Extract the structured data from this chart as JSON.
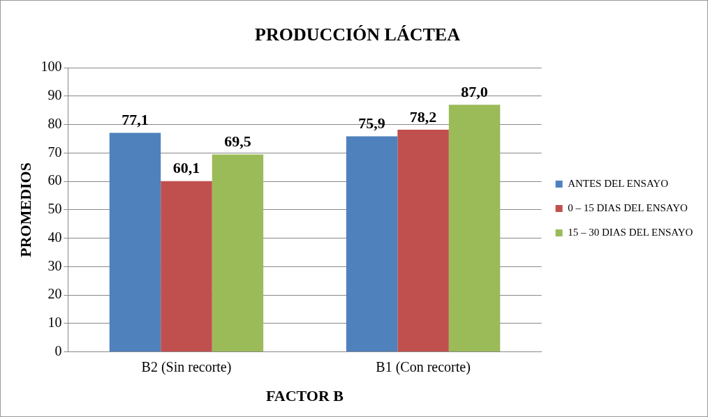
{
  "chart_data": {
    "type": "bar",
    "title": "PRODUCCIÓN LÁCTEA",
    "xlabel": "FACTOR B",
    "ylabel": "PROMEDIOS",
    "categories": [
      "B2 (Sin recorte)",
      "B1 (Con recorte)"
    ],
    "series": [
      {
        "name": "ANTES DEL ENSAYO",
        "color": "#4f81bd",
        "values": [
          77.1,
          75.9
        ],
        "value_labels": [
          "77,1",
          "75,9"
        ]
      },
      {
        "name": "0 – 15 DIAS DEL ENSAYO",
        "color": "#c0504d",
        "values": [
          60.1,
          78.2
        ],
        "value_labels": [
          "60,1",
          "78,2"
        ]
      },
      {
        "name": "15 – 30 DIAS DEL ENSAYO",
        "color": "#9bbb59",
        "values": [
          69.5,
          87.0
        ],
        "value_labels": [
          "69,5",
          "87,0"
        ]
      }
    ],
    "ylim": [
      0,
      100
    ],
    "yticks": [
      0,
      10,
      20,
      30,
      40,
      50,
      60,
      70,
      80,
      90,
      100
    ],
    "grid": "y",
    "legend": "right"
  }
}
